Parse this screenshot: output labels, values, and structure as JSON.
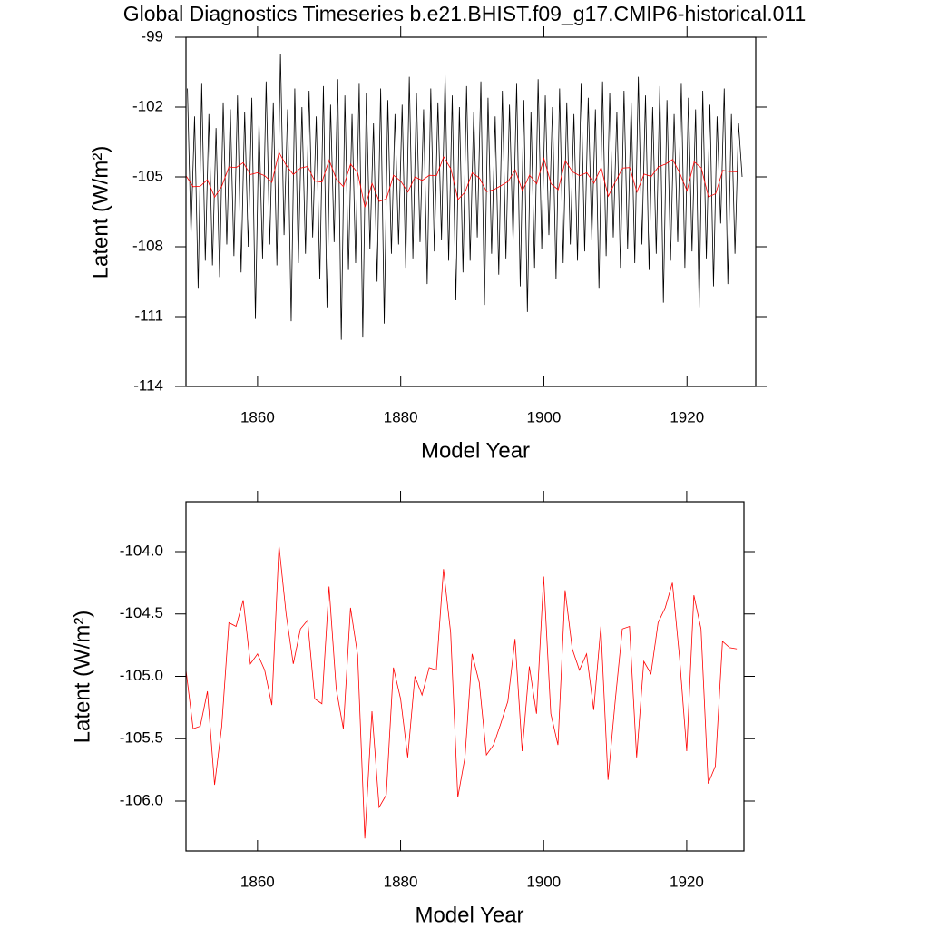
{
  "chart_data": [
    {
      "type": "line",
      "title": "Global Diagnostics Timeseries b.e21.BHIST.f09_g17.CMIP6-historical.011",
      "xlabel": "Model Year",
      "ylabel": "Latent (W/m²)",
      "xlim": [
        1850,
        1929.6
      ],
      "ylim": [
        -114,
        -99
      ],
      "xticks": [
        1860,
        1880,
        1900,
        1920
      ],
      "yticks": [
        -99,
        -102,
        -105,
        -108,
        -111,
        -114
      ],
      "series": [
        {
          "color": "#000000",
          "x": [
            1850.2,
            1850.7,
            1851.2,
            1851.7,
            1852.2,
            1852.7,
            1853.2,
            1853.7,
            1854.2,
            1854.7,
            1855.2,
            1855.7,
            1856.2,
            1856.7,
            1857.2,
            1857.7,
            1858.2,
            1858.7,
            1859.2,
            1859.7,
            1860.2,
            1860.7,
            1861.2,
            1861.7,
            1862.2,
            1862.7,
            1863.2,
            1863.7,
            1864.2,
            1864.7,
            1865.2,
            1865.7,
            1866.2,
            1866.7,
            1867.2,
            1867.7,
            1868.2,
            1868.7,
            1869.2,
            1869.7,
            1870.2,
            1870.7,
            1871.2,
            1871.7,
            1872.2,
            1872.7,
            1873.2,
            1873.7,
            1874.2,
            1874.7,
            1875.2,
            1875.7,
            1876.2,
            1876.7,
            1877.2,
            1877.7,
            1878.2,
            1878.7,
            1879.2,
            1879.7,
            1880.2,
            1880.7,
            1881.2,
            1881.7,
            1882.2,
            1882.7,
            1883.2,
            1883.7,
            1884.2,
            1884.7,
            1885.2,
            1885.7,
            1886.2,
            1886.7,
            1887.2,
            1887.7,
            1888.2,
            1888.7,
            1889.2,
            1889.7,
            1890.2,
            1890.7,
            1891.2,
            1891.7,
            1892.2,
            1892.7,
            1893.2,
            1893.7,
            1894.2,
            1894.7,
            1895.2,
            1895.7,
            1896.2,
            1896.7,
            1897.2,
            1897.7,
            1898.2,
            1898.7,
            1899.2,
            1899.7,
            1900.2,
            1900.7,
            1901.2,
            1901.7,
            1902.2,
            1902.7,
            1903.2,
            1903.7,
            1904.2,
            1904.7,
            1905.2,
            1905.7,
            1906.2,
            1906.7,
            1907.2,
            1907.7,
            1908.2,
            1908.7,
            1909.2,
            1909.7,
            1910.2,
            1910.7,
            1911.2,
            1911.7,
            1912.2,
            1912.7,
            1913.2,
            1913.7,
            1914.2,
            1914.7,
            1915.2,
            1915.7,
            1916.2,
            1916.7,
            1917.2,
            1917.7,
            1918.2,
            1918.7,
            1919.2,
            1919.7,
            1920.2,
            1920.7,
            1921.2,
            1921.7,
            1922.2,
            1922.7,
            1923.2,
            1923.7,
            1924.2,
            1924.7,
            1925.2,
            1925.7,
            1926.2,
            1926.7,
            1927.2,
            1927.7
          ],
          "values": [
            -101.2,
            -107.5,
            -102.4,
            -109.8,
            -101.0,
            -108.6,
            -102.3,
            -108.8,
            -102.9,
            -109.3,
            -101.8,
            -107.9,
            -102.1,
            -108.4,
            -101.5,
            -109.1,
            -102.2,
            -108.0,
            -101.6,
            -111.1,
            -102.6,
            -108.5,
            -100.9,
            -107.9,
            -101.8,
            -108.8,
            -99.7,
            -107.5,
            -102.1,
            -111.2,
            -101.2,
            -108.7,
            -102.0,
            -108.3,
            -101.3,
            -107.6,
            -102.4,
            -109.4,
            -101.1,
            -110.6,
            -101.9,
            -107.8,
            -100.8,
            -112.0,
            -101.5,
            -109.0,
            -102.3,
            -108.7,
            -101.0,
            -111.9,
            -101.4,
            -108.1,
            -102.7,
            -109.5,
            -101.2,
            -111.3,
            -101.7,
            -108.3,
            -102.3,
            -107.9,
            -101.9,
            -108.9,
            -100.7,
            -108.5,
            -101.4,
            -107.8,
            -102.1,
            -109.6,
            -101.2,
            -108.2,
            -101.8,
            -107.7,
            -100.6,
            -108.6,
            -101.5,
            -110.3,
            -102.0,
            -109.1,
            -101.1,
            -108.6,
            -102.2,
            -107.6,
            -100.9,
            -110.5,
            -101.6,
            -108.3,
            -102.4,
            -109.2,
            -101.3,
            -108.5,
            -101.9,
            -107.8,
            -101.0,
            -109.7,
            -101.7,
            -110.8,
            -102.2,
            -108.9,
            -100.8,
            -108.1,
            -101.5,
            -107.5,
            -102.0,
            -109.4,
            -101.2,
            -108.7,
            -101.8,
            -107.9,
            -102.3,
            -108.6,
            -101.0,
            -108.2,
            -101.6,
            -107.7,
            -102.1,
            -109.8,
            -100.9,
            -108.4,
            -101.4,
            -107.6,
            -102.2,
            -108.9,
            -101.3,
            -108.1,
            -101.8,
            -108.7,
            -100.7,
            -107.9,
            -101.5,
            -109.0,
            -102.0,
            -108.3,
            -101.1,
            -110.4,
            -101.7,
            -108.6,
            -102.3,
            -107.8,
            -101.0,
            -108.9,
            -101.6,
            -108.2,
            -102.1,
            -110.6,
            -101.3,
            -108.5,
            -101.9,
            -109.7,
            -102.4,
            -107.0,
            -101.2,
            -109.6,
            -102.3,
            -108.3,
            -102.7,
            -105.0
          ]
        },
        {
          "color": "#ff0000",
          "x": [
            1850,
            1851,
            1852,
            1853,
            1854,
            1855,
            1856,
            1857,
            1858,
            1859,
            1860,
            1861,
            1862,
            1863,
            1864,
            1865,
            1866,
            1867,
            1868,
            1869,
            1870,
            1871,
            1872,
            1873,
            1874,
            1875,
            1876,
            1877,
            1878,
            1879,
            1880,
            1881,
            1882,
            1883,
            1884,
            1885,
            1886,
            1887,
            1888,
            1889,
            1890,
            1891,
            1892,
            1893,
            1894,
            1895,
            1896,
            1897,
            1898,
            1899,
            1900,
            1901,
            1902,
            1903,
            1904,
            1905,
            1906,
            1907,
            1908,
            1909,
            1910,
            1911,
            1912,
            1913,
            1914,
            1915,
            1916,
            1917,
            1918,
            1919,
            1920,
            1921,
            1922,
            1923,
            1924,
            1925,
            1926,
            1927
          ],
          "values": [
            -104.95,
            -105.42,
            -105.4,
            -105.12,
            -105.87,
            -105.4,
            -104.57,
            -104.6,
            -104.39,
            -104.9,
            -104.82,
            -104.95,
            -105.23,
            -103.95,
            -104.5,
            -104.9,
            -104.62,
            -104.55,
            -105.18,
            -105.22,
            -104.28,
            -105.1,
            -105.42,
            -104.45,
            -104.83,
            -106.3,
            -105.28,
            -106.05,
            -105.95,
            -104.93,
            -105.18,
            -105.65,
            -105.0,
            -105.15,
            -104.93,
            -104.95,
            -104.14,
            -104.65,
            -105.97,
            -105.65,
            -104.82,
            -105.05,
            -105.63,
            -105.55,
            -105.38,
            -105.2,
            -104.7,
            -105.6,
            -104.92,
            -105.3,
            -104.2,
            -105.3,
            -105.55,
            -104.31,
            -104.78,
            -104.95,
            -104.82,
            -105.27,
            -104.6,
            -105.83,
            -105.2,
            -104.62,
            -104.6,
            -105.65,
            -104.88,
            -104.98,
            -104.57,
            -104.45,
            -104.25,
            -104.85,
            -105.6,
            -104.35,
            -104.62,
            -105.86,
            -105.72,
            -104.72,
            -104.77,
            -104.78
          ]
        }
      ]
    },
    {
      "type": "line",
      "xlabel": "Model Year",
      "ylabel": "Latent (W/m²)",
      "xlim": [
        1850,
        1928
      ],
      "ylim": [
        -106.4,
        -103.6
      ],
      "xticks": [
        1860,
        1880,
        1900,
        1920
      ],
      "yticks": [
        {
          "value": -104,
          "label": "-104.0"
        },
        -104.5,
        {
          "value": -105,
          "label": "-105.0"
        },
        -105.5,
        {
          "value": -106,
          "label": "-106.0"
        }
      ],
      "series": [
        {
          "color": "#ff0000",
          "x": [
            1850,
            1851,
            1852,
            1853,
            1854,
            1855,
            1856,
            1857,
            1858,
            1859,
            1860,
            1861,
            1862,
            1863,
            1864,
            1865,
            1866,
            1867,
            1868,
            1869,
            1870,
            1871,
            1872,
            1873,
            1874,
            1875,
            1876,
            1877,
            1878,
            1879,
            1880,
            1881,
            1882,
            1883,
            1884,
            1885,
            1886,
            1887,
            1888,
            1889,
            1890,
            1891,
            1892,
            1893,
            1894,
            1895,
            1896,
            1897,
            1898,
            1899,
            1900,
            1901,
            1902,
            1903,
            1904,
            1905,
            1906,
            1907,
            1908,
            1909,
            1910,
            1911,
            1912,
            1913,
            1914,
            1915,
            1916,
            1917,
            1918,
            1919,
            1920,
            1921,
            1922,
            1923,
            1924,
            1925,
            1926,
            1927
          ],
          "values": [
            -104.95,
            -105.42,
            -105.4,
            -105.12,
            -105.87,
            -105.4,
            -104.57,
            -104.6,
            -104.39,
            -104.9,
            -104.82,
            -104.95,
            -105.23,
            -103.95,
            -104.5,
            -104.9,
            -104.62,
            -104.55,
            -105.18,
            -105.22,
            -104.28,
            -105.1,
            -105.42,
            -104.45,
            -104.83,
            -106.3,
            -105.28,
            -106.05,
            -105.95,
            -104.93,
            -105.18,
            -105.65,
            -105.0,
            -105.15,
            -104.93,
            -104.95,
            -104.14,
            -104.65,
            -105.97,
            -105.65,
            -104.82,
            -105.05,
            -105.63,
            -105.55,
            -105.38,
            -105.2,
            -104.7,
            -105.6,
            -104.92,
            -105.3,
            -104.2,
            -105.3,
            -105.55,
            -104.31,
            -104.78,
            -104.95,
            -104.82,
            -105.27,
            -104.6,
            -105.83,
            -105.2,
            -104.62,
            -104.6,
            -105.65,
            -104.88,
            -104.98,
            -104.57,
            -104.45,
            -104.25,
            -104.85,
            -105.6,
            -104.35,
            -104.62,
            -105.86,
            -105.72,
            -104.72,
            -104.77,
            -104.78
          ]
        }
      ]
    }
  ]
}
